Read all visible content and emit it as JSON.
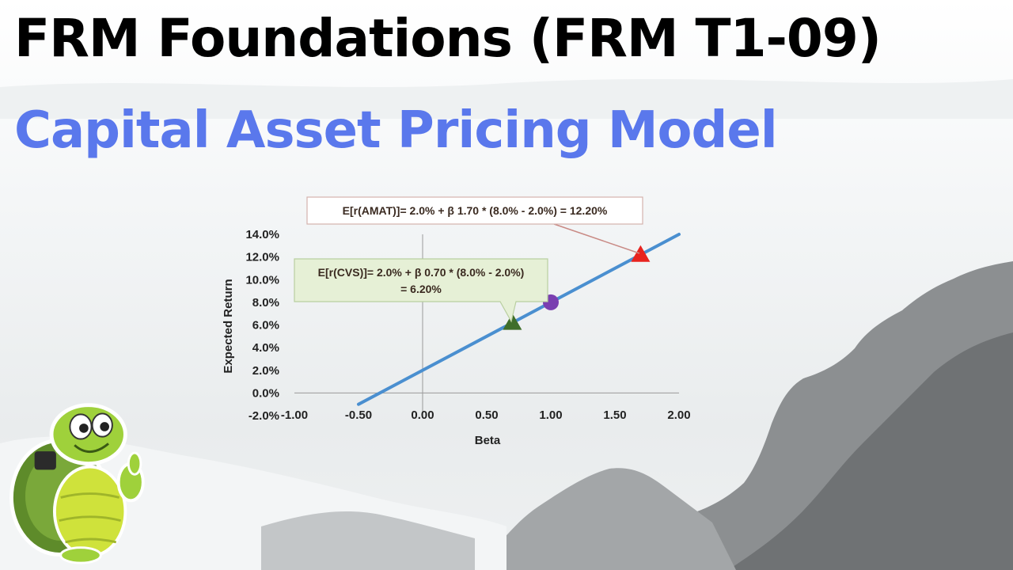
{
  "header": {
    "title": "FRM Foundations (FRM T1-09)",
    "subtitle": "Capital Asset Pricing Model"
  },
  "chart_data": {
    "type": "line",
    "xlabel": "Beta",
    "ylabel": "Expected Return",
    "xlim": [
      -1.0,
      2.0
    ],
    "ylim": [
      -2.0,
      14.0
    ],
    "x_ticks": [
      "-1.00",
      "-0.50",
      "0.00",
      "0.50",
      "1.00",
      "1.50",
      "2.00"
    ],
    "y_ticks": [
      "-2.0%",
      "0.0%",
      "2.0%",
      "4.0%",
      "6.0%",
      "8.0%",
      "10.0%",
      "12.0%",
      "14.0%"
    ],
    "line": {
      "x": [
        -0.5,
        2.0
      ],
      "y": [
        -1.0,
        14.0
      ],
      "color": "#4a8fd0"
    },
    "points": [
      {
        "x": 0.7,
        "y": 6.2,
        "marker": "triangle",
        "color": "#3f6e2a"
      },
      {
        "x": 1.0,
        "y": 8.0,
        "marker": "circle",
        "color": "#7a3fb0"
      },
      {
        "x": 1.7,
        "y": 12.2,
        "marker": "triangle",
        "color": "#e8231f"
      }
    ],
    "annotations": [
      {
        "lines": [
          "E[r(AMAT)]= 2.0% + β 1.70 * (8.0% - 2.0%) = 12.20%"
        ]
      },
      {
        "lines": [
          "E[r(CVS)]= 2.0% + β 0.70 * (8.0% - 2.0%)",
          "= 6.20%"
        ]
      }
    ]
  }
}
